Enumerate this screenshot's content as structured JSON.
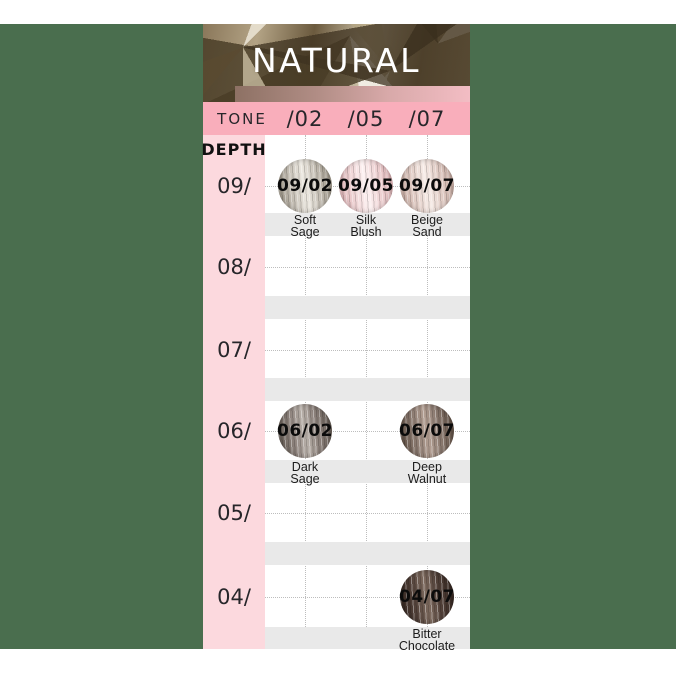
{
  "header": {
    "title": "NATURAL"
  },
  "tone_row": {
    "label": "TONE",
    "columns": [
      "/02",
      "/05",
      "/07"
    ]
  },
  "depth_header": "DEPTH",
  "rows": [
    {
      "depth": "09/",
      "swatches": [
        {
          "col": 0,
          "code": "09/02",
          "name_lines": [
            "Soft",
            "Sage"
          ],
          "base": "#c9c3b9",
          "light": "#ece8e0",
          "dark": "#948c7d"
        },
        {
          "col": 1,
          "code": "09/05",
          "name_lines": [
            "Silk",
            "Blush"
          ],
          "base": "#f0d5d6",
          "light": "#fdf1f1",
          "dark": "#dcadb0"
        },
        {
          "col": 2,
          "code": "09/07",
          "name_lines": [
            "Beige",
            "Sand"
          ],
          "base": "#e3cfc8",
          "light": "#f7ece7",
          "dark": "#c3a59b"
        }
      ]
    },
    {
      "depth": "08/",
      "swatches": []
    },
    {
      "depth": "07/",
      "swatches": []
    },
    {
      "depth": "06/",
      "swatches": [
        {
          "col": 0,
          "code": "06/02",
          "name_lines": [
            "Dark",
            "Sage"
          ],
          "base": "#8d827c",
          "light": "#b8b0a9",
          "dark": "#5c534b"
        },
        {
          "col": 2,
          "code": "06/07",
          "name_lines": [
            "Deep",
            "Walnut"
          ],
          "base": "#8b7a70",
          "light": "#b29e92",
          "dark": "#57473b"
        }
      ]
    },
    {
      "depth": "05/",
      "swatches": []
    },
    {
      "depth": "04/",
      "swatches": [
        {
          "col": 2,
          "code": "04/07",
          "name_lines": [
            "Bitter",
            "Chocolate"
          ],
          "base": "#53423a",
          "light": "#7d6a5e",
          "dark": "#2e211b"
        }
      ]
    }
  ],
  "colors": {
    "background_green": "#4a6e4e",
    "tone_row_pink": "#f9aebb",
    "depth_column_pink": "#fcd9de",
    "label_band_gray": "#e9e9e9",
    "gradient_bar_left": "#8d7164",
    "gradient_bar_right": "#f3bdc4",
    "title_text": "#ffffff"
  },
  "chart_data": {
    "type": "table",
    "title": "NATURAL",
    "columns": [
      "/02",
      "/05",
      "/07"
    ],
    "rows": [
      "09/",
      "08/",
      "07/",
      "06/",
      "05/",
      "04/"
    ],
    "cells": [
      {
        "depth": "09/",
        "tone": "/02",
        "code": "09/02",
        "name": "Soft Sage"
      },
      {
        "depth": "09/",
        "tone": "/05",
        "code": "09/05",
        "name": "Silk Blush"
      },
      {
        "depth": "09/",
        "tone": "/07",
        "code": "09/07",
        "name": "Beige Sand"
      },
      {
        "depth": "06/",
        "tone": "/02",
        "code": "06/02",
        "name": "Dark Sage"
      },
      {
        "depth": "06/",
        "tone": "/07",
        "code": "06/07",
        "name": "Deep Walnut"
      },
      {
        "depth": "04/",
        "tone": "/07",
        "code": "04/07",
        "name": "Bitter Chocolate"
      }
    ]
  }
}
